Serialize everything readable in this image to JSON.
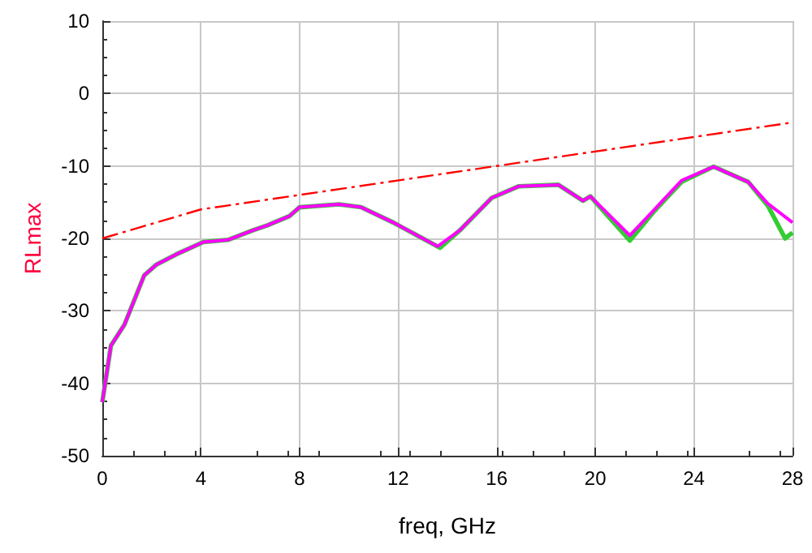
{
  "chart_data": {
    "type": "line",
    "xlabel": "freq, GHz",
    "ylabel": "RLmax",
    "xlim": [
      0,
      28
    ],
    "xticks": [
      0,
      4,
      8,
      12,
      16,
      20,
      24,
      28
    ],
    "ylim": [
      -50,
      10
    ],
    "yticks": [
      -50,
      -40,
      -30,
      -20,
      -10,
      0,
      10
    ],
    "grid": true,
    "marker": "none",
    "series": [
      {
        "color": "#ff0000",
        "line_style": "dashed",
        "x": [
          0,
          4,
          28
        ],
        "values": [
          -20,
          -16,
          -4
        ]
      },
      {
        "color": "#ff00ff",
        "line_style": "solid",
        "x": [
          0,
          0.35,
          0.9,
          1.7,
          2.2,
          3,
          4.1,
          5.1,
          6.1,
          6.7,
          7.6,
          8,
          9.6,
          10.5,
          11.8,
          13.6,
          14.5,
          15.8,
          16.9,
          18.5,
          19.5,
          19.8,
          21.4,
          22.4,
          23.5,
          24.8,
          26.2,
          27,
          28
        ],
        "values": [
          -42.6,
          -34.8,
          -31.9,
          -25.1,
          -23.6,
          -22.2,
          -20.5,
          -20.2,
          -18.9,
          -18.2,
          -16.9,
          -15.7,
          -15.3,
          -15.7,
          -17.8,
          -21.1,
          -18.9,
          -14.4,
          -12.8,
          -12.6,
          -14.8,
          -14.2,
          -19.6,
          -16,
          -12,
          -10.1,
          -12.2,
          -15.2,
          -17.8
        ]
      },
      {
        "color": "#33cc33",
        "line_style": "solid",
        "x": [
          0,
          0.35,
          0.9,
          1.7,
          2.2,
          3,
          4.1,
          5.1,
          6.1,
          6.7,
          7.6,
          8,
          9.6,
          10.5,
          11.8,
          13.7,
          14.5,
          15.8,
          16.9,
          18.5,
          19.5,
          19.8,
          21.4,
          22.4,
          23.5,
          24.8,
          26.2,
          27,
          27.7,
          28
        ],
        "values": [
          -42.6,
          -34.8,
          -31.9,
          -25.1,
          -23.6,
          -22.2,
          -20.5,
          -20.2,
          -18.9,
          -18.2,
          -16.9,
          -15.7,
          -15.3,
          -15.7,
          -17.8,
          -21.3,
          -18.9,
          -14.4,
          -12.8,
          -12.6,
          -14.8,
          -14.2,
          -20.3,
          -16.2,
          -12.2,
          -10.1,
          -12.2,
          -15.5,
          -20,
          -19.2
        ]
      }
    ]
  }
}
